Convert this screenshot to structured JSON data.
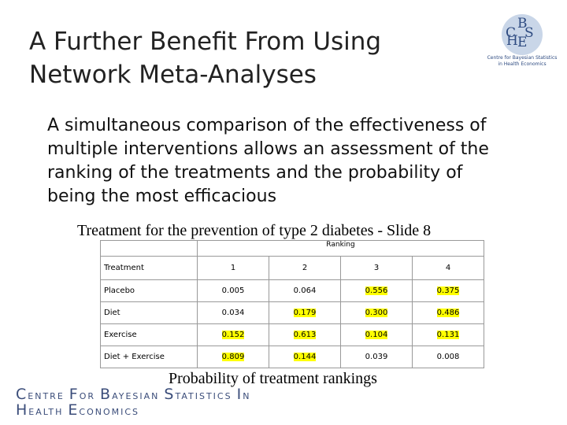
{
  "header": {
    "title_lines": [
      "A Further Benefit From Using",
      "Network Meta-Analyses"
    ],
    "logo": {
      "letters": [
        "C",
        "B",
        "H",
        "S",
        "E"
      ],
      "caption_lines": [
        "Centre for Bayesian Statistics",
        "in Health Economics"
      ]
    }
  },
  "body": {
    "lines": [
      "A simultaneous comparison of the effectiveness of",
      "multiple interventions allows an assessment of the",
      "ranking of the treatments and the probability of",
      "being the most efficacious"
    ]
  },
  "table": {
    "caption": "Treatment for the prevention of type 2 diabetes - Slide 8",
    "group_header": "Ranking",
    "columns": [
      "Treatment",
      "1",
      "2",
      "3",
      "4"
    ],
    "highlight_color": "#ffff00",
    "rows": [
      {
        "treatment": "Placebo",
        "values": [
          "0.005",
          "0.064",
          "0.556",
          "0.375"
        ],
        "highlighted": [
          false,
          false,
          true,
          true
        ]
      },
      {
        "treatment": "Diet",
        "values": [
          "0.034",
          "0.179",
          "0.300",
          "0.486"
        ],
        "highlighted": [
          false,
          true,
          true,
          true
        ]
      },
      {
        "treatment": "Exercise",
        "values": [
          "0.152",
          "0.613",
          "0.104",
          "0.131"
        ],
        "highlighted": [
          true,
          true,
          true,
          true
        ]
      },
      {
        "treatment": "Diet + Exercise",
        "values": [
          "0.809",
          "0.144",
          "0.039",
          "0.008"
        ],
        "highlighted": [
          true,
          true,
          false,
          false
        ]
      }
    ],
    "footnote": "Probability of treatment rankings"
  },
  "footer": {
    "logo_lines": [
      [
        "CENTRE",
        "FOR",
        "BAYESIAN",
        "STATISTICS",
        "IN"
      ],
      [
        "HEALTH",
        "ECONOMICS"
      ]
    ]
  }
}
